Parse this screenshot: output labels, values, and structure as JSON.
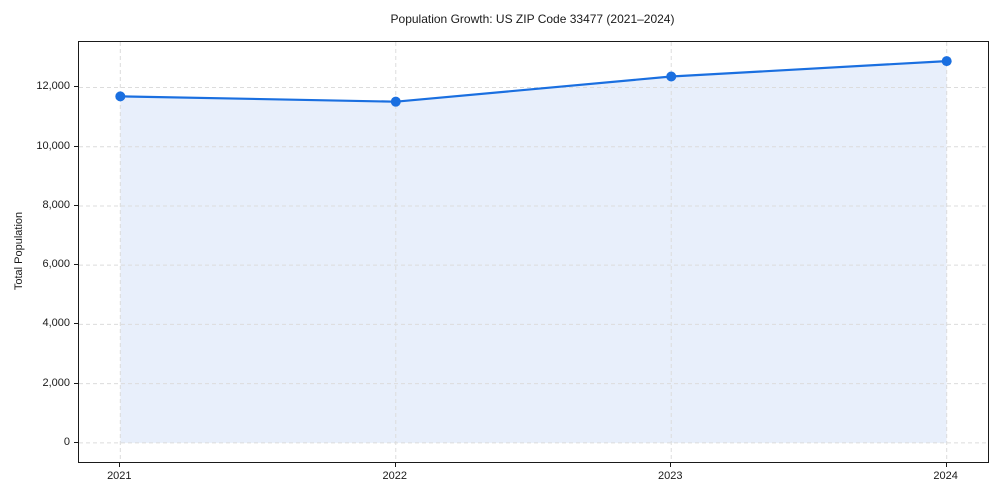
{
  "figure": {
    "background": "#ffffff"
  },
  "chart_data": {
    "type": "line",
    "title": "Population Growth: US ZIP Code 33477 (2021–2024)",
    "xlabel": "",
    "ylabel": "Total Population",
    "x": [
      2021,
      2022,
      2023,
      2024
    ],
    "series": [
      {
        "name": "Total Population",
        "values": [
          11700,
          11520,
          12370,
          12890
        ]
      }
    ],
    "x_tick_labels": [
      "2021",
      "2022",
      "2023",
      "2024"
    ],
    "x_tick_values": [
      2021,
      2022,
      2023,
      2024
    ],
    "y_tick_labels": [
      "0",
      "2,000",
      "4,000",
      "6,000",
      "8,000",
      "10,000",
      "12,000"
    ],
    "y_tick_values": [
      0,
      2000,
      4000,
      6000,
      8000,
      10000,
      12000
    ],
    "xlim": [
      2020.85,
      2024.15
    ],
    "ylim": [
      -645,
      13535
    ],
    "grid": true,
    "grid_style": "dashed",
    "legend": "none",
    "area_fill_to": 0,
    "marker": "circle",
    "colors": {
      "line": "#1a6fe0",
      "marker": "#1a6fe0",
      "fill": "#e8effb",
      "grid": "#dcdcdc",
      "spine": "#1a1a1a",
      "text": "#1a1a1a",
      "background": "#ffffff"
    }
  }
}
